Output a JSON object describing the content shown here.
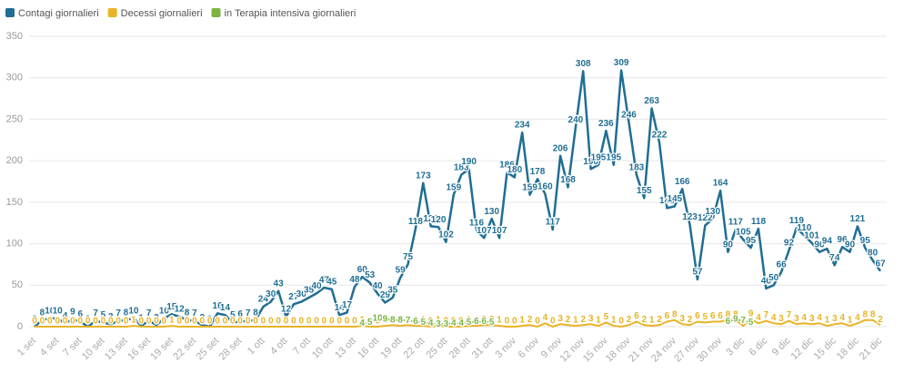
{
  "chart_data": {
    "type": "line",
    "categories": [
      "1 set",
      null,
      null,
      "4 set",
      null,
      null,
      "7 set",
      null,
      null,
      "10 set",
      null,
      null,
      "13 set",
      null,
      null,
      "16 set",
      null,
      null,
      "19 set",
      null,
      null,
      "22 set",
      null,
      null,
      "25 set",
      null,
      null,
      "28 set",
      null,
      null,
      "1 ott",
      null,
      null,
      "4 ott",
      null,
      null,
      "7 ott",
      null,
      null,
      "10 ott",
      null,
      null,
      "13 ott",
      null,
      null,
      "16 ott",
      null,
      null,
      "19 ott",
      null,
      null,
      "22 ott",
      null,
      null,
      "25 ott",
      null,
      null,
      "28 ott",
      null,
      null,
      "31 ott",
      null,
      null,
      "3 nov",
      null,
      null,
      "6 nov",
      null,
      null,
      "9 nov",
      null,
      null,
      "12 nov",
      null,
      null,
      "15 nov",
      null,
      null,
      "18 nov",
      null,
      null,
      "21 nov",
      null,
      null,
      "24 nov",
      null,
      null,
      "27 nov",
      null,
      null,
      "30 nov",
      null,
      null,
      "3 dic",
      null,
      null,
      "6 dic",
      null,
      null,
      "9 dic",
      null,
      null,
      "12 dic",
      null,
      null,
      "15 dic",
      null,
      null,
      "18 dic",
      null,
      null,
      "21 dic"
    ],
    "series": [
      {
        "name": "Contagi giornalieri",
        "color": "#1f6e94",
        "values": [
          0,
          8,
          10,
          10,
          4,
          9,
          6,
          0,
          7,
          5,
          3,
          7,
          8,
          10,
          1,
          7,
          2,
          10,
          15,
          12,
          8,
          7,
          2,
          0,
          16,
          14,
          5,
          6,
          7,
          8,
          24,
          30,
          43,
          12,
          27,
          30,
          35,
          40,
          47,
          45,
          14,
          17,
          48,
          60,
          53,
          40,
          29,
          35,
          59,
          75,
          118,
          173,
          121,
          120,
          102,
          159,
          183,
          190,
          116,
          107,
          130,
          107,
          186,
          180,
          234,
          159,
          178,
          160,
          117,
          206,
          168,
          240,
          308,
          190,
          195,
          236,
          195,
          309,
          246,
          183,
          155,
          263,
          222,
          143,
          145,
          166,
          123,
          57,
          122,
          130,
          164,
          90,
          117,
          105,
          95,
          118,
          46,
          50,
          66,
          92,
          119,
          110,
          101,
          90,
          94,
          74,
          96,
          90,
          121,
          95,
          80,
          67
        ]
      },
      {
        "name": "Decessi giornalieri",
        "color": "#e8b324",
        "values": [
          0,
          0,
          0,
          0,
          0,
          0,
          0,
          0,
          0,
          0,
          0,
          0,
          0,
          1,
          0,
          0,
          0,
          0,
          1,
          0,
          0,
          0,
          0,
          0,
          0,
          0,
          0,
          0,
          0,
          0,
          0,
          0,
          0,
          0,
          0,
          0,
          0,
          0,
          0,
          0,
          0,
          0,
          0,
          1,
          0,
          0,
          1,
          2,
          1,
          2,
          1,
          1,
          0,
          1,
          0,
          0,
          0,
          1,
          1,
          2,
          2,
          1,
          0,
          0,
          1,
          2,
          0,
          4,
          0,
          3,
          2,
          1,
          2,
          3,
          1,
          5,
          1,
          0,
          2,
          6,
          2,
          1,
          2,
          6,
          8,
          3,
          2,
          6,
          5,
          6,
          6,
          8,
          8,
          1,
          9,
          4,
          7,
          4,
          3,
          7,
          3,
          4,
          3,
          4,
          1,
          3,
          4,
          1,
          4,
          8,
          8,
          2
        ]
      },
      {
        "name": "in Terapia intensiva giornalieri",
        "color": "#7cb342",
        "values": [
          null,
          null,
          null,
          null,
          null,
          null,
          null,
          null,
          null,
          null,
          null,
          null,
          null,
          null,
          null,
          null,
          null,
          null,
          null,
          null,
          null,
          null,
          null,
          null,
          null,
          null,
          null,
          null,
          null,
          null,
          null,
          null,
          null,
          null,
          null,
          null,
          null,
          null,
          null,
          null,
          null,
          null,
          null,
          4,
          5,
          10,
          9,
          8,
          8,
          7,
          6,
          5,
          4,
          3,
          3,
          4,
          4,
          5,
          6,
          6,
          5,
          null,
          null,
          null,
          null,
          null,
          null,
          null,
          null,
          null,
          null,
          null,
          null,
          null,
          null,
          null,
          null,
          null,
          null,
          null,
          null,
          null,
          null,
          null,
          null,
          null,
          null,
          null,
          null,
          null,
          null,
          6,
          9,
          7,
          5,
          null,
          null,
          null,
          null,
          null,
          null,
          null,
          null,
          null,
          null,
          null,
          null,
          null,
          null,
          null,
          null,
          null
        ]
      }
    ],
    "ylim": [
      0,
      350
    ],
    "yticks": [
      0,
      50,
      100,
      150,
      200,
      250,
      300,
      350
    ],
    "grid": true,
    "legend": "top-left"
  }
}
